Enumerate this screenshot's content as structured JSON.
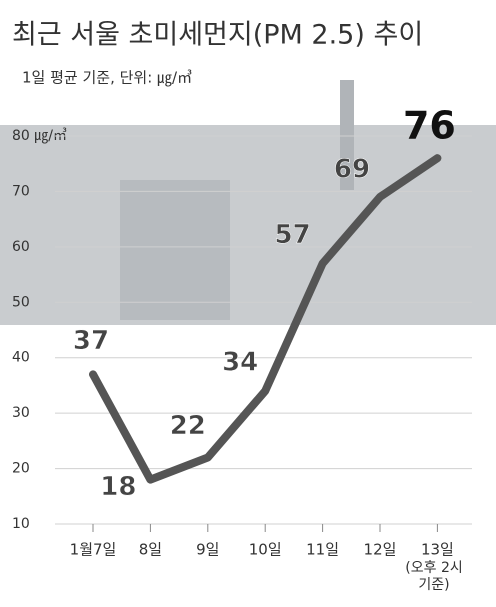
{
  "chart_data": {
    "type": "line",
    "title": "최근 서울 초미세먼지(PM 2.5) 추이",
    "subtitle": "1일 평균 기준, 단위: ㎍/㎥",
    "categories": [
      "1월7일",
      "8일",
      "9일",
      "10일",
      "11일",
      "12일",
      "13일"
    ],
    "annotation": "(오후 2시 기준)",
    "series": [
      {
        "name": "초미세먼지",
        "color": "#555555",
        "values": [
          37,
          18,
          22,
          34,
          57,
          69,
          76
        ]
      }
    ],
    "ylim": [
      10,
      80
    ],
    "yticks": [
      10,
      20,
      30,
      40,
      50,
      60,
      70,
      {
        "value": 80,
        "label": "80 ㎍/㎥"
      }
    ],
    "grid": true
  }
}
